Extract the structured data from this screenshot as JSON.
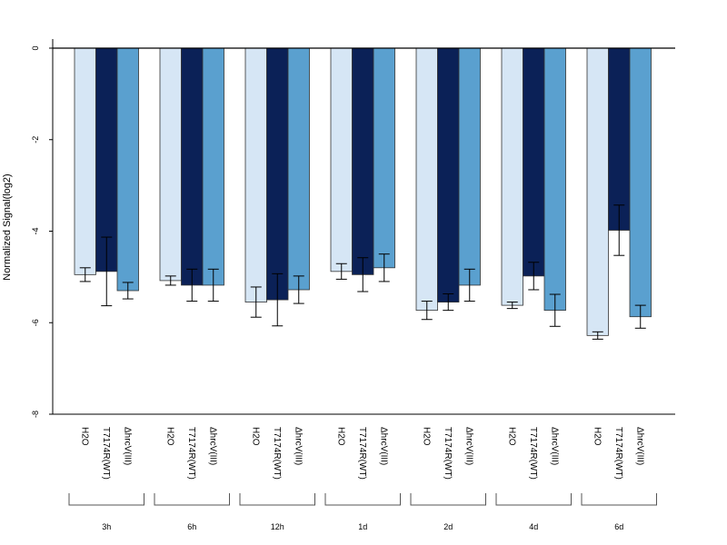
{
  "chart_data": {
    "type": "bar",
    "ylabel": "Normalized Signal(log2)",
    "ylim": [
      -8,
      0
    ],
    "yticks": [
      0,
      -2,
      -4,
      -6,
      -8
    ],
    "error_bars": true,
    "bar_labels": [
      "H2O",
      "T7174R(WT)",
      "ΔhrcV(III)"
    ],
    "bar_colors": [
      "#d6e6f5",
      "#0b2157",
      "#5aa0cf"
    ],
    "groups": [
      {
        "label": "3h",
        "values": [
          -4.95,
          -4.88,
          -5.3
        ],
        "err": [
          0.15,
          0.75,
          0.18
        ]
      },
      {
        "label": "6h",
        "values": [
          -5.08,
          -5.18,
          -5.18
        ],
        "err": [
          0.1,
          0.35,
          0.35
        ]
      },
      {
        "label": "12h",
        "values": [
          -5.55,
          -5.5,
          -5.28
        ],
        "err": [
          0.33,
          0.57,
          0.3
        ]
      },
      {
        "label": "1d",
        "values": [
          -4.88,
          -4.95,
          -4.8
        ],
        "err": [
          0.17,
          0.37,
          0.3
        ]
      },
      {
        "label": "2d",
        "values": [
          -5.73,
          -5.55,
          -5.18
        ],
        "err": [
          0.2,
          0.18,
          0.35
        ]
      },
      {
        "label": "4d",
        "values": [
          -5.62,
          -4.98,
          -5.73
        ],
        "err": [
          0.07,
          0.3,
          0.35
        ]
      },
      {
        "label": "6d",
        "values": [
          -6.28,
          -3.98,
          -5.87
        ],
        "err": [
          0.08,
          0.55,
          0.25
        ]
      }
    ]
  }
}
